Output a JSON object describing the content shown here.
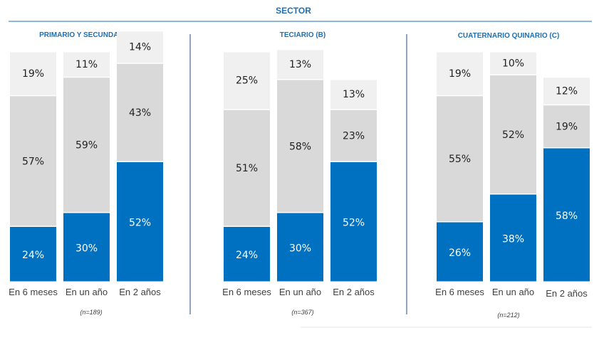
{
  "header": {
    "title": "SECTOR"
  },
  "colors": {
    "low": "#f0f0f0",
    "mid": "#d9d9d9",
    "high": "#0070c0",
    "accent": "#1f6fb2",
    "divider": "#1f4e79"
  },
  "chart_data": [
    {
      "type": "bar",
      "title": "PRIMARIO Y SECUNDARIO (A)",
      "note": "(n=189)",
      "categories": [
        "En 6 meses",
        "En un año",
        "En 2 años"
      ],
      "series": [
        {
          "values": [
            24,
            30,
            52
          ]
        },
        {
          "values": [
            57,
            59,
            43
          ]
        },
        {
          "values": [
            19,
            11,
            14
          ]
        }
      ]
    },
    {
      "type": "bar",
      "title": "TECIARIO (B)",
      "note": "(n=367)",
      "categories": [
        "En 6 meses",
        "En un año",
        "En 2 años"
      ],
      "series": [
        {
          "values": [
            24,
            30,
            52
          ]
        },
        {
          "values": [
            51,
            58,
            23
          ]
        },
        {
          "values": [
            25,
            13,
            13
          ]
        }
      ]
    },
    {
      "type": "bar",
      "title": "CUATERNARIO  QUINARIO (C)",
      "note": "(n=212)",
      "categories": [
        "En 6 meses",
        "En un año",
        "En 2 años"
      ],
      "series": [
        {
          "values": [
            26,
            38,
            58
          ]
        },
        {
          "values": [
            55,
            52,
            19
          ]
        },
        {
          "values": [
            19,
            10,
            12
          ]
        }
      ]
    }
  ]
}
